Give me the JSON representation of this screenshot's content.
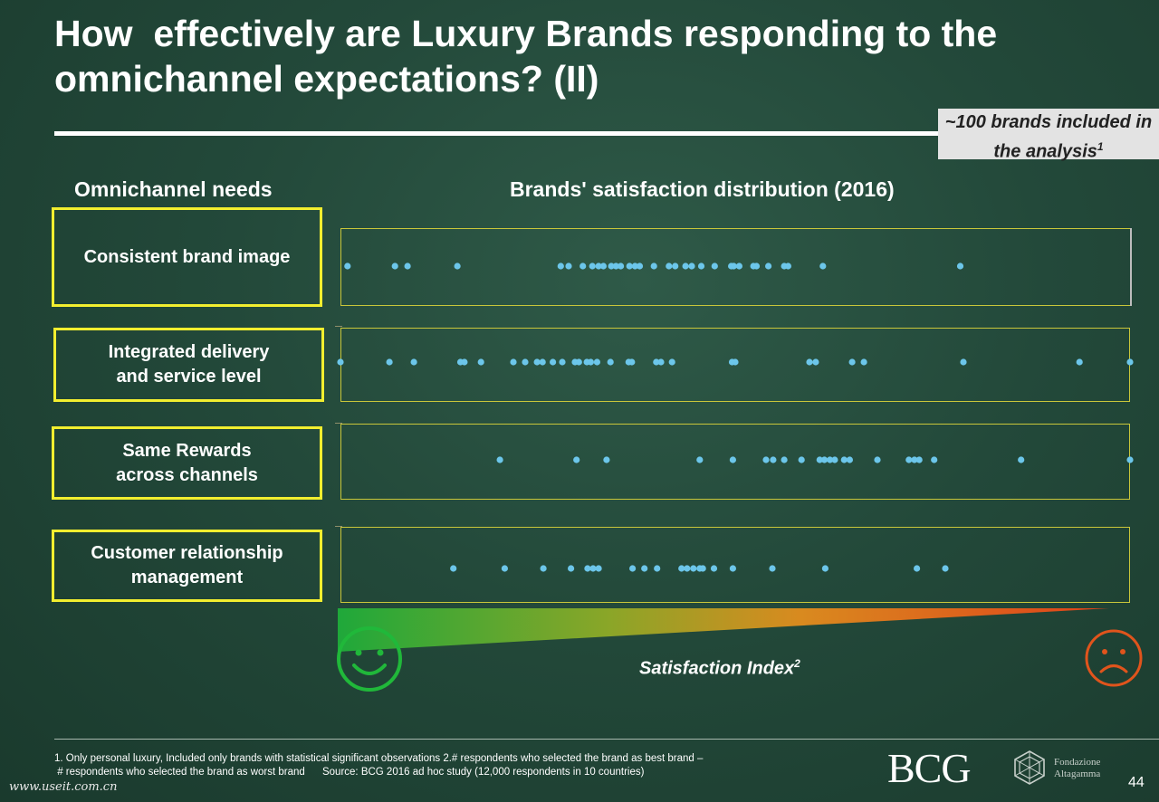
{
  "title": "How  effectively are Luxury Brands responding to the omnichannel expectations? (II)",
  "callout": {
    "text": "~100 brands included in the analysis",
    "sup": "1"
  },
  "headers": {
    "needs": "Omnichannel needs",
    "distribution": "Brands' satisfaction distribution (2016)"
  },
  "chart_data": {
    "type": "scatter",
    "title": "Brands' satisfaction distribution (2016)",
    "xlabel": "Satisfaction Index",
    "xlabel_sup": "2",
    "x_direction": "left = satisfied (green), right = dissatisfied (red)",
    "xlim": [
      0,
      1
    ],
    "categories": [
      "Consistent brand image",
      "Integrated delivery\nand service level",
      "Same Rewards\nacross channels",
      "Customer relationship\nmanagement"
    ],
    "series": [
      {
        "values": [
          0.009,
          0.069,
          0.085,
          0.148,
          0.279,
          0.289,
          0.307,
          0.319,
          0.327,
          0.333,
          0.343,
          0.349,
          0.355,
          0.366,
          0.373,
          0.379,
          0.397,
          0.416,
          0.424,
          0.437,
          0.445,
          0.457,
          0.474,
          0.495,
          0.498,
          0.505,
          0.523,
          0.527,
          0.542,
          0.562,
          0.567,
          0.611,
          0.785
        ]
      },
      {
        "values": [
          0.0,
          0.062,
          0.093,
          0.152,
          0.157,
          0.178,
          0.219,
          0.234,
          0.249,
          0.256,
          0.269,
          0.281,
          0.297,
          0.302,
          0.312,
          0.317,
          0.325,
          0.342,
          0.365,
          0.369,
          0.4,
          0.406,
          0.42,
          0.496,
          0.5,
          0.594,
          0.602,
          0.648,
          0.663,
          0.789,
          0.936,
          1.0
        ]
      },
      {
        "values": [
          0.202,
          0.299,
          0.337,
          0.455,
          0.497,
          0.539,
          0.548,
          0.562,
          0.584,
          0.607,
          0.613,
          0.62,
          0.626,
          0.638,
          0.645,
          0.68,
          0.72,
          0.727,
          0.733,
          0.752,
          0.862,
          1.0
        ]
      },
      {
        "values": [
          0.143,
          0.208,
          0.257,
          0.292,
          0.313,
          0.32,
          0.327,
          0.37,
          0.385,
          0.401,
          0.432,
          0.439,
          0.447,
          0.455,
          0.459,
          0.473,
          0.497,
          0.547,
          0.614,
          0.73,
          0.766
        ]
      }
    ]
  },
  "footnote": "1. Only personal luxury, Included only brands with statistical significant observations 2.# respondents who selected the brand as best brand –\n # respondents who selected the brand as worst brand      Source: BCG 2016 ad hoc study (12,000 respondents in 10 countries)",
  "logos": {
    "bcg": "BCG",
    "altagamma": "Fondazione\nAltagamma"
  },
  "page_number": "44",
  "watermark": "www.useit.com.cn",
  "colors": {
    "dot": "#6cc6ea",
    "box_border": "#f2ee2f",
    "happy": "#20b83a",
    "sad": "#e0541c"
  }
}
